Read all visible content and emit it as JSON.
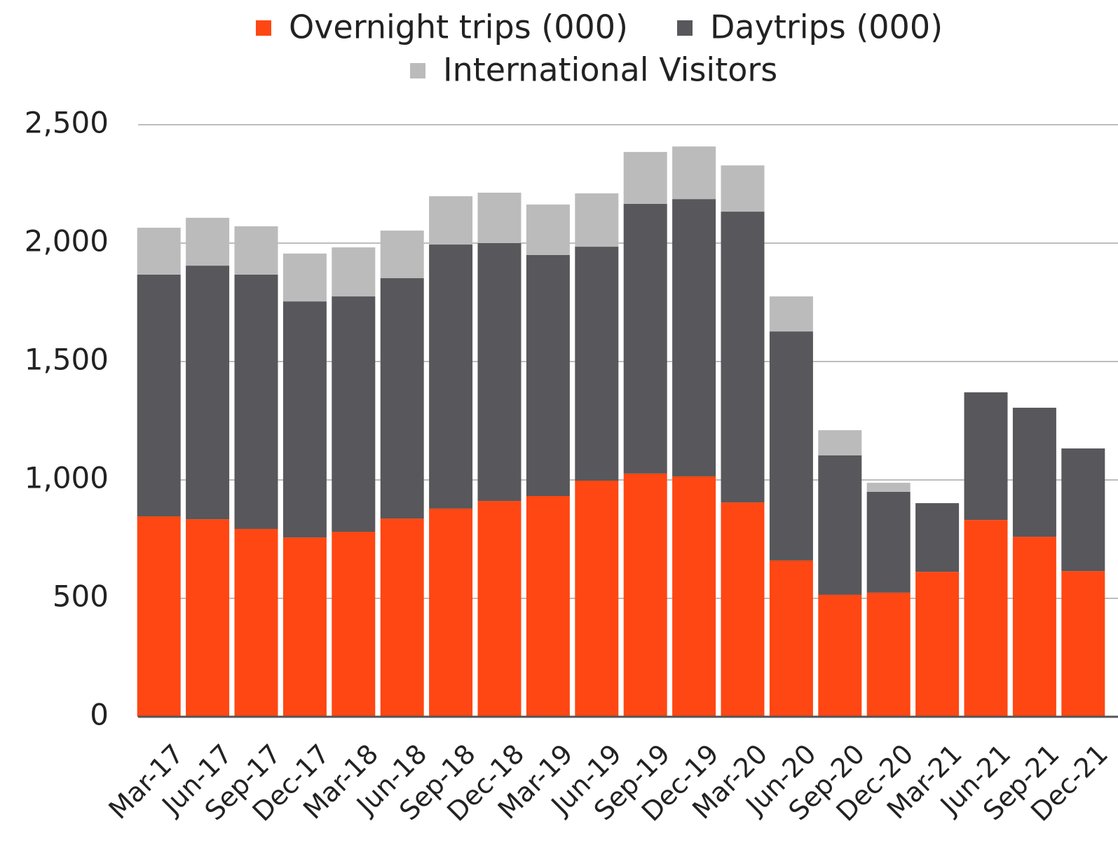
{
  "chart_data": {
    "type": "stacked_bar",
    "categories": [
      "Mar-17",
      "Jun-17",
      "Sep-17",
      "Dec-17",
      "Mar-18",
      "Jun-18",
      "Sep-18",
      "Dec-18",
      "Mar-19",
      "Jun-19",
      "Sep-19",
      "Dec-19",
      "Mar-20",
      "Jun-20",
      "Sep-20",
      "Dec-20",
      "Mar-21",
      "Jun-21",
      "Sep-21",
      "Dec-21"
    ],
    "series": [
      {
        "name": "Overnight trips (000)",
        "color": "#ff4713",
        "values": [
          846,
          834,
          793,
          757,
          781,
          837,
          879,
          911,
          932,
          997,
          1027,
          1015,
          905,
          660,
          515,
          524,
          612,
          831,
          760,
          615
        ]
      },
      {
        "name": "Daytrips (000)",
        "color": "#58575b",
        "values": [
          1021,
          1071,
          1074,
          997,
          994,
          1015,
          1115,
          1089,
          1018,
          988,
          1139,
          1171,
          1228,
          967,
          589,
          426,
          290,
          539,
          545,
          518
        ]
      },
      {
        "name": "International Visitors",
        "color": "#bcbbbc",
        "values": [
          198,
          202,
          204,
          202,
          207,
          201,
          204,
          213,
          213,
          225,
          219,
          222,
          195,
          148,
          106,
          38,
          null,
          null,
          null,
          null
        ]
      }
    ],
    "ylim": [
      0,
      2500
    ],
    "yticks": [
      0,
      500,
      {
        "value": 1000,
        "label": "1,000"
      },
      {
        "value": 1500,
        "label": "1,500"
      },
      {
        "value": 2000,
        "label": "2,000"
      },
      {
        "value": 2500,
        "label": "2,500"
      }
    ],
    "grid": true,
    "legend": "top"
  }
}
